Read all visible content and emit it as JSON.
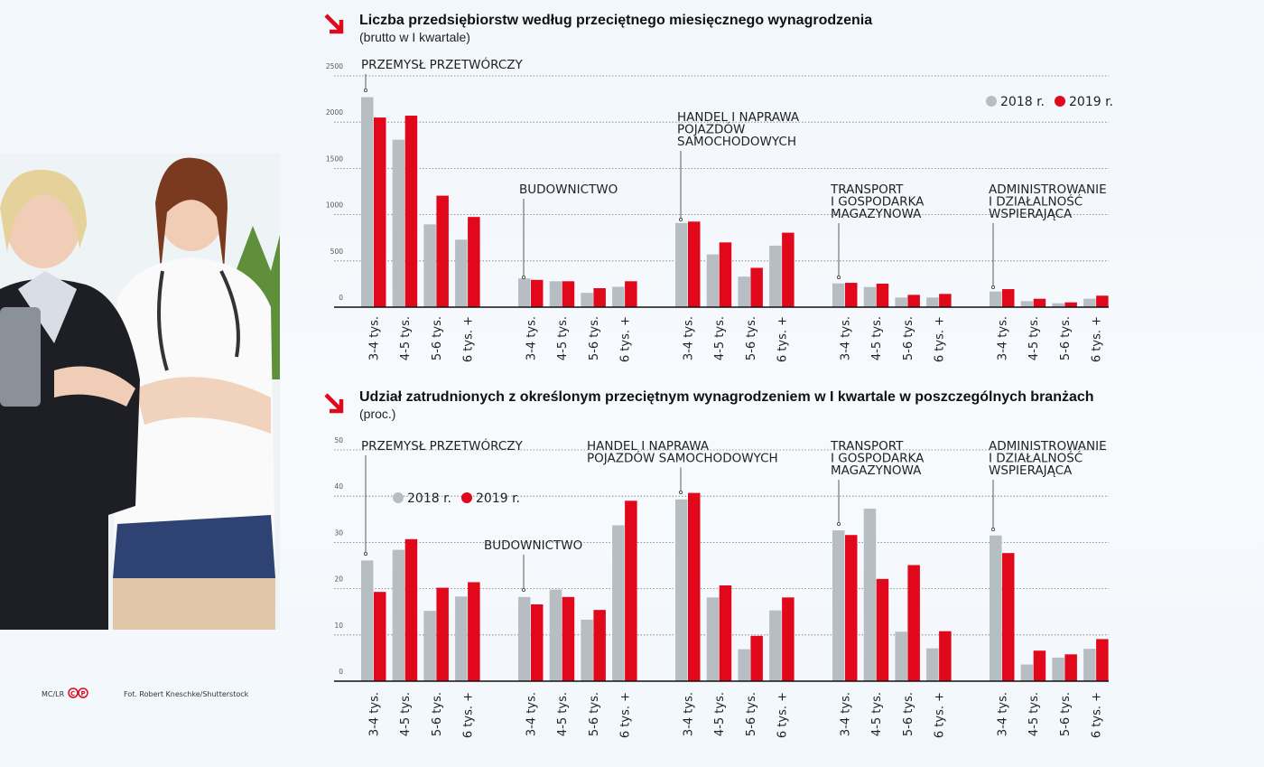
{
  "colors": {
    "2018": "#b6bec4",
    "2019": "#e2081c",
    "accent_arrow": "#e2081c"
  },
  "icons": {
    "title_marker": "red-diagonal-arrow-icon",
    "copyright": "cp-logo-icon"
  },
  "credits": {
    "authors": "MC/LR",
    "logo": "©P",
    "photo": "Fot. Robert Kneschke/Shutterstock"
  },
  "chart_data": [
    {
      "type": "bar",
      "title": "Liczba przedsiębiorstw według przeciętnego miesięcznego wynagrodzenia",
      "subtitle": "(brutto w I kwartale)",
      "ylim": [
        0,
        2500
      ],
      "yticks": [
        "0",
        "500",
        "1000",
        "1500",
        "2000",
        "2500"
      ],
      "grid": true,
      "legend": {
        "entries": [
          "2018 r.",
          "2019 r."
        ],
        "placement": "top-right"
      },
      "categories": [
        "3-4 tys.",
        "4-5 tys.",
        "5-6 tys.",
        "6 tys. +"
      ],
      "groups": [
        {
          "name": [
            "PRZEMYSŁ PRZETWÓRCZY"
          ],
          "s2018": [
            2270,
            1810,
            895,
            730
          ],
          "s2019": [
            2050,
            2070,
            1205,
            975
          ]
        },
        {
          "name": [
            "BUDOWNICTWO"
          ],
          "s2018": [
            310,
            280,
            155,
            220
          ],
          "s2019": [
            295,
            280,
            205,
            280
          ]
        },
        {
          "name": [
            "HANDEL I NAPRAWA",
            "POJAZDÓW",
            "SAMOCHODOWYCH"
          ],
          "s2018": [
            910,
            570,
            330,
            665
          ],
          "s2019": [
            925,
            700,
            425,
            805
          ]
        },
        {
          "name": [
            "TRANSPORT",
            "I GOSPODARKA",
            "MAGAZYNOWA"
          ],
          "s2018": [
            257,
            218,
            104,
            104
          ],
          "s2019": [
            263,
            254,
            133,
            143
          ]
        },
        {
          "name": [
            "ADMINISTROWANIE",
            "I DZIAŁALNOŚĆ",
            "WSPIERAJĄCA"
          ],
          "s2018": [
            169,
            65,
            42,
            91
          ],
          "s2019": [
            195,
            91,
            52,
            124
          ]
        }
      ]
    },
    {
      "type": "bar",
      "title": "Udział zatrudnionych z określonym przeciętnym wynagrodzeniem w I kwartale w poszczególnych branżach",
      "subtitle": "(proc.)",
      "ylim": [
        0,
        50
      ],
      "yticks": [
        "0",
        "10",
        "20",
        "30",
        "40",
        "50"
      ],
      "grid": true,
      "legend": {
        "entries": [
          "2018 r.",
          "2019 r."
        ],
        "placement": "top-left"
      },
      "categories": [
        "3-4 tys.",
        "4-5 tys.",
        "5-6 tys.",
        "6 tys. +"
      ],
      "groups": [
        {
          "name": [
            "PRZEMYSŁ PRZETWÓRCZY"
          ],
          "s2018": [
            26.1,
            28.4,
            15.2,
            18.3
          ],
          "s2019": [
            19.3,
            30.7,
            20.2,
            21.4
          ]
        },
        {
          "name": [
            "BUDOWNICTWO"
          ],
          "s2018": [
            18.2,
            19.8,
            13.3,
            33.7
          ],
          "s2019": [
            16.6,
            18.2,
            15.4,
            39.0
          ]
        },
        {
          "name": [
            "HANDEL I NAPRAWA",
            "POJAZDÓW SAMOCHODOWYCH"
          ],
          "s2018": [
            39.3,
            18.1,
            6.9,
            15.3
          ],
          "s2019": [
            40.7,
            20.7,
            9.8,
            18.1
          ]
        },
        {
          "name": [
            "TRANSPORT",
            "I GOSPODARKA",
            "MAGAZYNOWA"
          ],
          "s2018": [
            32.6,
            37.3,
            10.7,
            7.1
          ],
          "s2019": [
            31.6,
            22.1,
            25.1,
            10.8
          ]
        },
        {
          "name": [
            "ADMINISTROWANIE",
            "I DZIAŁALNOŚĆ",
            "WSPIERAJĄCA"
          ],
          "s2018": [
            31.5,
            3.6,
            5.1,
            7.0
          ],
          "s2019": [
            27.7,
            6.6,
            5.8,
            9.1
          ]
        }
      ]
    }
  ]
}
